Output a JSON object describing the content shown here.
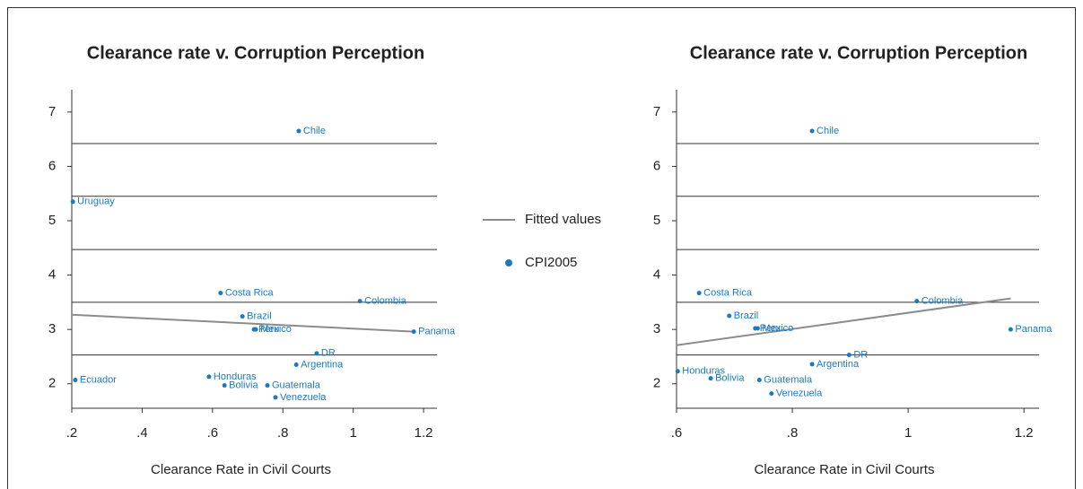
{
  "chart_data": [
    {
      "type": "scatter",
      "title": "Clearance rate v. Corruption Perception",
      "xlabel": "Clearance Rate in Civil Courts",
      "xlim": [
        0.2,
        1.238
      ],
      "ylim": [
        1.55,
        7.41
      ],
      "xticks": [
        {
          "value": 0.2,
          "label": ".2"
        },
        {
          "value": 0.4,
          "label": ".4"
        },
        {
          "value": 0.6,
          "label": ".6"
        },
        {
          "value": 0.8,
          "label": ".8"
        },
        1,
        1.2
      ],
      "yticks": [
        2,
        3,
        4,
        5,
        6,
        7
      ],
      "ygrid": [
        2.53,
        3.5,
        4.47,
        5.45,
        6.42
      ],
      "series": [
        {
          "name": "Fitted values",
          "color": "#8c8c8c",
          "x": [
            0.2,
            1.172
          ],
          "values": [
            3.27,
            2.96
          ]
        },
        {
          "name": "CPI2005",
          "color": "#1a7abf",
          "x": [
            0.845,
            0.203,
            0.623,
            1.019,
            0.685,
            0.718,
            0.723,
            1.172,
            0.896,
            0.838,
            0.59,
            0.21,
            0.634,
            0.756,
            0.779
          ],
          "values": [
            6.65,
            5.35,
            3.67,
            3.52,
            3.24,
            3.0,
            3.0,
            2.96,
            2.56,
            2.35,
            2.13,
            2.07,
            1.97,
            1.97,
            1.75
          ],
          "labels": [
            "Chile",
            "Uruguay",
            "Costa Rica",
            "Colombia",
            "Brazil",
            "Peru",
            "Mexico",
            "Panama",
            "DR",
            "Argentina",
            "Honduras",
            "Ecuador",
            "Bolivia",
            "Guatemala",
            "Venezuela"
          ]
        }
      ]
    },
    {
      "type": "scatter",
      "title": "Clearance rate v. Corruption Perception",
      "xlabel": "Clearance Rate in Civil Courts",
      "xlim": [
        0.6,
        1.226
      ],
      "ylim": [
        1.55,
        7.41
      ],
      "xticks": [
        {
          "value": 0.6,
          "label": ".6"
        },
        {
          "value": 0.8,
          "label": ".8"
        },
        1,
        1.2
      ],
      "yticks": [
        2,
        3,
        4,
        5,
        6,
        7
      ],
      "ygrid": [
        2.53,
        3.5,
        4.47,
        5.45,
        6.42
      ],
      "series": [
        {
          "color": "#8c8c8c",
          "x": [
            0.6,
            1.177
          ],
          "values": [
            2.71,
            3.57
          ]
        },
        {
          "color": "#1a7abf",
          "x": [
            0.834,
            0.639,
            1.015,
            0.691,
            0.736,
            0.74,
            1.177,
            0.898,
            0.834,
            0.602,
            0.659,
            0.743,
            0.764
          ],
          "values": [
            6.65,
            3.67,
            3.52,
            3.25,
            3.02,
            3.02,
            3.0,
            2.53,
            2.36,
            2.23,
            2.1,
            2.07,
            1.82
          ],
          "labels": [
            "Chile",
            "Costa Rica",
            "Colombia",
            "Brazil",
            "Peru",
            "Mexico",
            "Panama",
            "DR",
            "Argentina",
            "Honduras",
            "Bolivia",
            "Guatemala",
            "Venezuela"
          ]
        }
      ]
    }
  ]
}
